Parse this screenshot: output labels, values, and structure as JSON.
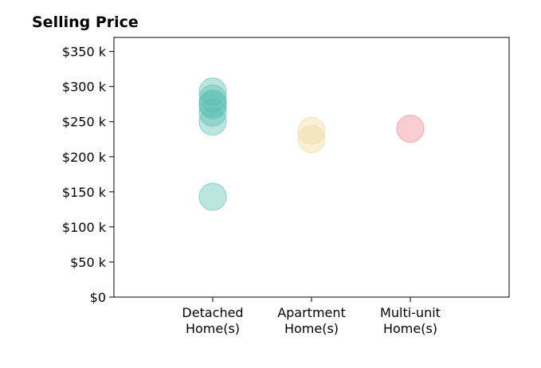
{
  "chart_data": {
    "type": "scatter",
    "title": "Selling Price",
    "xlabel": "",
    "ylabel": "",
    "categories": [
      {
        "lines": [
          "Detached",
          "Home(s)"
        ],
        "color": "#5bbfb2"
      },
      {
        "lines": [
          "Apartment",
          "Home(s)"
        ],
        "color": "#f0d99a"
      },
      {
        "lines": [
          "Multi-unit",
          "Home(s)"
        ],
        "color": "#f08590"
      }
    ],
    "points": [
      {
        "category": 0,
        "value": 293000
      },
      {
        "category": 0,
        "value": 283000
      },
      {
        "category": 0,
        "value": 276000
      },
      {
        "category": 0,
        "value": 273000
      },
      {
        "category": 0,
        "value": 263000
      },
      {
        "category": 0,
        "value": 250000
      },
      {
        "category": 0,
        "value": 143000
      },
      {
        "category": 1,
        "value": 237000
      },
      {
        "category": 1,
        "value": 225000
      },
      {
        "category": 2,
        "value": 240000
      }
    ],
    "yticks": [
      {
        "value": 0,
        "label": "$0"
      },
      {
        "value": 50000,
        "label": "$50 k"
      },
      {
        "value": 100000,
        "label": "$100 k"
      },
      {
        "value": 150000,
        "label": "$150 k"
      },
      {
        "value": 200000,
        "label": "$200 k"
      },
      {
        "value": 250000,
        "label": "$250 k"
      },
      {
        "value": 300000,
        "label": "$300 k"
      },
      {
        "value": 350000,
        "label": "$350 k"
      }
    ],
    "ylim": [
      0,
      370000
    ],
    "xlim": [
      -1,
      3
    ],
    "grid": false,
    "marker_opacity": 0.4
  }
}
